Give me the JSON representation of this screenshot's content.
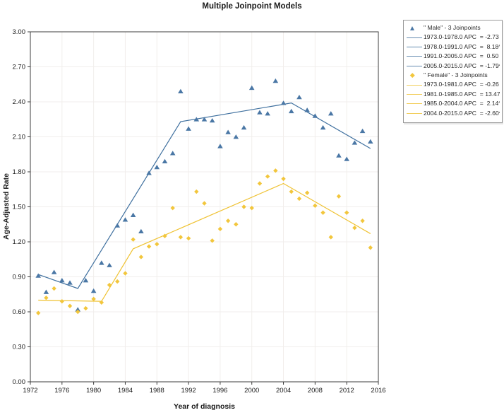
{
  "chart_data": {
    "type": "scatter",
    "title": "Multiple Joinpoint Models",
    "xlabel": "Year of diagnosis",
    "ylabel": "Age-Adjusted Rate",
    "xlim": [
      1972,
      2016
    ],
    "ylim": [
      0,
      3
    ],
    "x_ticks": [
      1972,
      1976,
      1980,
      1984,
      1988,
      1992,
      1996,
      2000,
      2004,
      2008,
      2012,
      2016
    ],
    "y_ticks": [
      "0.00",
      "0.30",
      "0.60",
      "0.90",
      "1.20",
      "1.50",
      "1.80",
      "2.10",
      "2.40",
      "2.70",
      "3.00"
    ],
    "grid": true,
    "legend_position": "top-right",
    "years": [
      1973,
      1974,
      1975,
      1976,
      1977,
      1978,
      1979,
      1980,
      1981,
      1982,
      1983,
      1984,
      1985,
      1986,
      1987,
      1988,
      1989,
      1990,
      1991,
      1992,
      1993,
      1994,
      1995,
      1996,
      1997,
      1998,
      1999,
      2000,
      2001,
      2002,
      2003,
      2004,
      2005,
      2006,
      2007,
      2008,
      2009,
      2010,
      2011,
      2012,
      2013,
      2014,
      2015
    ],
    "series": [
      {
        "name": "Male",
        "marker": "triangle",
        "color": "#4a77a5",
        "line_color": "#3e6f9e",
        "legend_label": "\" Male\" - 3 Joinpoints",
        "values": [
          0.91,
          0.77,
          0.94,
          0.87,
          0.85,
          0.62,
          0.87,
          0.78,
          1.02,
          1.0,
          1.34,
          1.39,
          1.43,
          1.29,
          1.79,
          1.84,
          1.89,
          1.96,
          2.49,
          2.17,
          2.25,
          2.25,
          2.24,
          2.02,
          2.14,
          2.1,
          2.18,
          2.52,
          2.31,
          2.3,
          2.58,
          2.39,
          2.32,
          2.44,
          2.33,
          2.28,
          2.18,
          2.3,
          1.94,
          1.91,
          2.05,
          2.15,
          2.06
        ],
        "joinpoint_line": [
          [
            1973,
            0.92
          ],
          [
            1978,
            0.8
          ],
          [
            1991,
            2.23
          ],
          [
            2005,
            2.39
          ],
          [
            2015,
            2.0
          ]
        ],
        "apc_segments": [
          "1973.0-1978.0 APC  = -2.73",
          "1978.0-1991.0 APC  =  8.18^",
          "1991.0-2005.0 APC  =  0.50",
          "2005.0-2015.0 APC  = -1.79^"
        ]
      },
      {
        "name": "Female",
        "marker": "diamond",
        "color": "#f2c63c",
        "line_color": "#efc232",
        "legend_label": "\" Female\" - 3 Joinpoints",
        "values": [
          0.59,
          0.72,
          0.8,
          0.69,
          0.65,
          0.6,
          0.63,
          0.71,
          0.68,
          0.83,
          0.86,
          0.93,
          1.22,
          1.07,
          1.16,
          1.18,
          1.25,
          1.49,
          1.24,
          1.23,
          1.63,
          1.53,
          1.21,
          1.31,
          1.38,
          1.35,
          1.5,
          1.49,
          1.7,
          1.76,
          1.81,
          1.74,
          1.63,
          1.57,
          1.62,
          1.51,
          1.45,
          1.24,
          1.59,
          1.45,
          1.32,
          1.38,
          1.15
        ],
        "joinpoint_line": [
          [
            1973,
            0.7
          ],
          [
            1981,
            0.69
          ],
          [
            1985,
            1.14
          ],
          [
            2004,
            1.7
          ],
          [
            2015,
            1.27
          ]
        ],
        "apc_segments": [
          "1973.0-1981.0 APC  = -0.26",
          "1981.0-1985.0 APC  = 13.47",
          "1985.0-2004.0 APC  =  2.14^",
          "2004.0-2015.0 APC  = -2.60^"
        ]
      }
    ]
  }
}
